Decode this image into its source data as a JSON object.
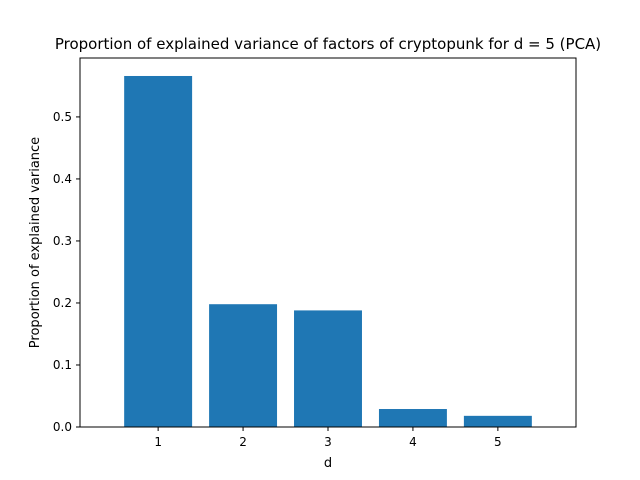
{
  "chart_data": {
    "type": "bar",
    "title": "Proportion of explained variance of factors of cryptopunk for d = 5 (PCA)",
    "xlabel": "d",
    "ylabel": "Proportion of explained variance",
    "categories": [
      "1",
      "2",
      "3",
      "4",
      "5"
    ],
    "values": [
      0.566,
      0.198,
      0.188,
      0.029,
      0.018
    ],
    "ylim": [
      0,
      0.595
    ],
    "yticks": [
      0.0,
      0.1,
      0.2,
      0.3,
      0.4,
      0.5
    ],
    "ytick_labels": [
      "0.0",
      "0.1",
      "0.2",
      "0.3",
      "0.4",
      "0.5"
    ],
    "grid": false,
    "legend": "none",
    "bar_color": "#1f77b4"
  }
}
